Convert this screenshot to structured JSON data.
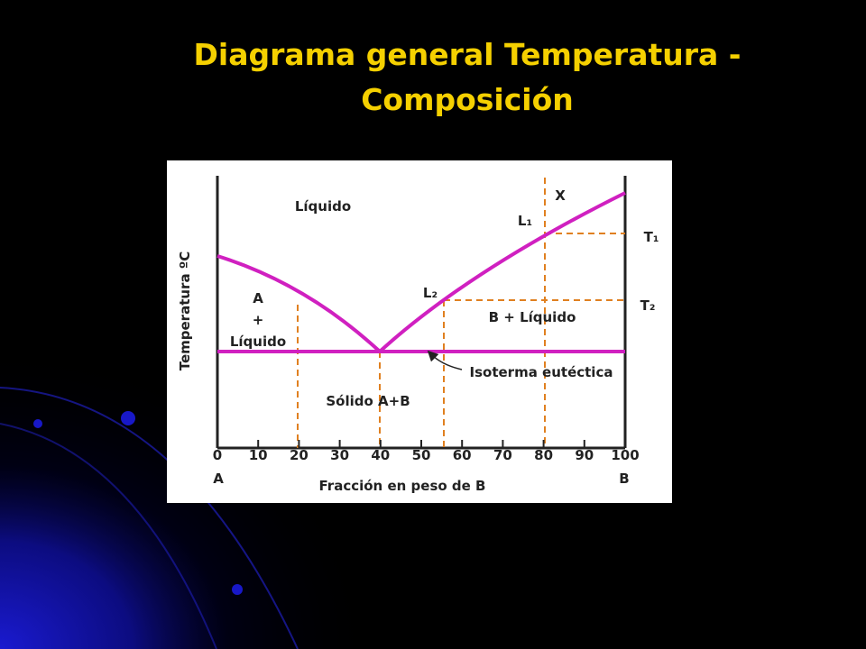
{
  "title": "Diagrama general Temperatura - Composición",
  "diagram": {
    "y_label": "Temperatura ºC",
    "x_label": "Fracción en peso de B",
    "xticks": [
      0,
      10,
      20,
      30,
      40,
      50,
      60,
      70,
      80,
      90,
      100
    ],
    "end_labels": [
      "A",
      "B"
    ],
    "regions": {
      "liquid": "Líquido",
      "a_liquid": [
        "A",
        "+",
        "Líquido"
      ],
      "b_liquid": "B + Líquido",
      "solid": "Sólido A+B"
    },
    "markers": {
      "x": "X",
      "l1": "L₁",
      "l2": "L₂",
      "t1": "T₁",
      "t2": "T₂"
    },
    "eutectic": "Isoterma eutéctica"
  }
}
